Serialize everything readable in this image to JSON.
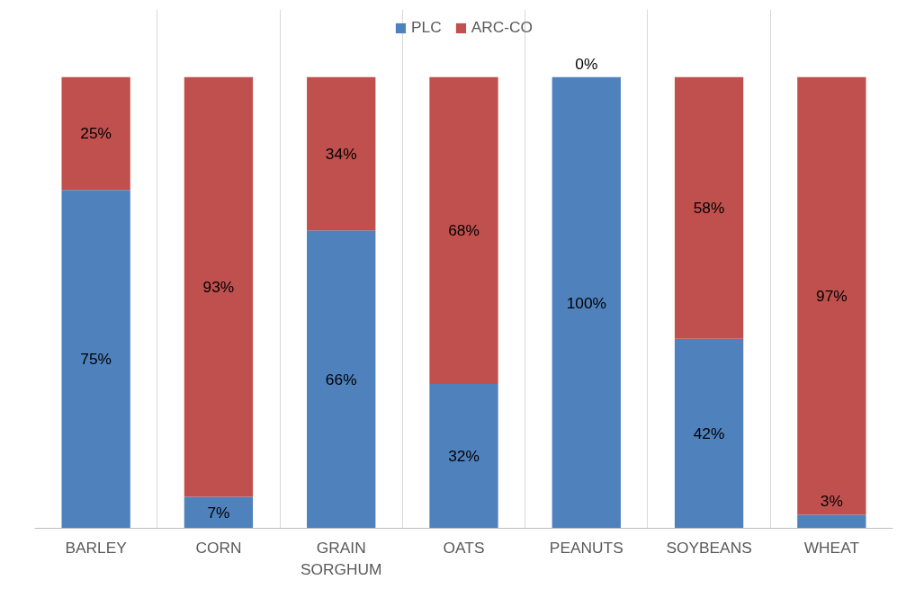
{
  "chart_data": {
    "type": "bar",
    "stacked": true,
    "categories": [
      "BARLEY",
      "CORN",
      "GRAIN SORGHUM",
      "OATS",
      "PEANUTS",
      "SOYBEANS",
      "WHEAT"
    ],
    "series": [
      {
        "name": "PLC",
        "color": "#4f81bd",
        "values": [
          75,
          7,
          66,
          32,
          100,
          42,
          3
        ],
        "value_labels": [
          "75%",
          "7%",
          "66%",
          "32%",
          "100%",
          "42%",
          "3%"
        ]
      },
      {
        "name": "ARC-CO",
        "color": "#c0504d",
        "values": [
          25,
          93,
          34,
          68,
          0,
          58,
          97
        ],
        "value_labels": [
          "25%",
          "93%",
          "34%",
          "68%",
          "0%",
          "58%",
          "97%"
        ]
      }
    ],
    "grid": "x",
    "legend": "top"
  }
}
